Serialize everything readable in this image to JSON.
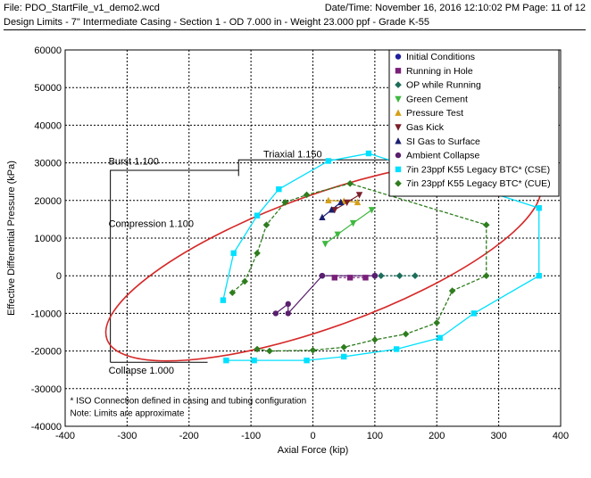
{
  "header": {
    "file_label": "File: PDO_StartFile_v1_demo2.wcd",
    "datetime_label": "Date/Time: November 16, 2016  12:10:02 PM  Page: 11 of 12"
  },
  "subtitle": "Design Limits - 7\" Intermediate Casing - Section 1 - OD 7.000 in - Weight 23.000 ppf - Grade K-55",
  "chart_data": {
    "type": "scatter",
    "xlabel": "Axial Force (kip)",
    "ylabel": "Effective Differential Pressure (kPa)",
    "xlim": [
      -400,
      400
    ],
    "ylim": [
      -40000,
      60000
    ],
    "xticks": [
      -400,
      -300,
      -200,
      -100,
      0,
      100,
      200,
      300,
      400
    ],
    "yticks": [
      -40000,
      -30000,
      -20000,
      -10000,
      0,
      10000,
      20000,
      30000,
      40000,
      50000,
      60000
    ],
    "grid": true,
    "legend_position": "top-right",
    "limit_labels": {
      "burst": "Burst 1.100",
      "triaxial": "Triaxial 1.150",
      "compression": "Compression 1.100",
      "collapse": "Collapse 1.000"
    },
    "notes": [
      "* ISO Connection defined in casing and tubing configuration",
      "Note: Limits are approximate"
    ],
    "series": [
      {
        "name": "Initial Conditions",
        "marker": "circle",
        "color": "#1f1f9e",
        "points": [
          [
            15,
            0
          ],
          [
            100,
            0
          ]
        ]
      },
      {
        "name": "Running in Hole",
        "marker": "square",
        "color": "#7a1f7a",
        "points": [
          [
            35,
            -500
          ],
          [
            60,
            -500
          ],
          [
            85,
            -500
          ]
        ]
      },
      {
        "name": "OP while Running",
        "marker": "diamond",
        "color": "#1c6e5a",
        "points": [
          [
            110,
            0
          ],
          [
            140,
            0
          ],
          [
            165,
            0
          ]
        ]
      },
      {
        "name": "Green Cement",
        "marker": "triangle-down",
        "color": "#3fb83f",
        "points": [
          [
            20,
            8500
          ],
          [
            40,
            11000
          ],
          [
            65,
            14000
          ],
          [
            95,
            17500
          ]
        ]
      },
      {
        "name": "Pressure Test",
        "marker": "triangle-up",
        "color": "#d4a017",
        "points": [
          [
            25,
            20000
          ],
          [
            50,
            19800
          ],
          [
            72,
            19500
          ]
        ]
      },
      {
        "name": "Gas Kick",
        "marker": "triangle-down",
        "color": "#7b1f2a",
        "points": [
          [
            35,
            17500
          ],
          [
            55,
            19500
          ],
          [
            75,
            21500
          ]
        ]
      },
      {
        "name": "SI Gas to Surface",
        "marker": "triangle-up",
        "color": "#1a1f6e",
        "points": [
          [
            15,
            15500
          ],
          [
            30,
            17500
          ],
          [
            45,
            19500
          ]
        ]
      },
      {
        "name": "Ambient Collapse",
        "marker": "circle",
        "color": "#5a1f6e",
        "points": [
          [
            -60,
            -10000
          ],
          [
            -40,
            -7500
          ],
          [
            -40,
            -10000
          ],
          [
            15,
            0
          ],
          [
            100,
            0
          ]
        ]
      },
      {
        "name": "7in 23ppf K55 Legacy BTC* (CSE)",
        "marker": "square",
        "color": "#00e0ff",
        "points": [
          [
            -145,
            -6500
          ],
          [
            -128,
            6000
          ],
          [
            -90,
            16000
          ],
          [
            -55,
            23000
          ],
          [
            25,
            30500
          ],
          [
            90,
            32500
          ],
          [
            365,
            18000
          ],
          [
            365,
            0
          ],
          [
            260,
            -10000
          ],
          [
            205,
            -16500
          ],
          [
            135,
            -19500
          ],
          [
            50,
            -21500
          ],
          [
            -10,
            -22500
          ],
          [
            -95,
            -22500
          ],
          [
            -140,
            -22500
          ]
        ]
      },
      {
        "name": "7in 23ppf K55 Legacy BTC* (CUE)",
        "marker": "diamond",
        "color": "#2e7d1e",
        "points": [
          [
            -130,
            -4500
          ],
          [
            -110,
            -1500
          ],
          [
            -90,
            6000
          ],
          [
            -75,
            13500
          ],
          [
            -45,
            19500
          ],
          [
            -10,
            21500
          ],
          [
            60,
            24500
          ],
          [
            280,
            13500
          ],
          [
            280,
            0
          ],
          [
            225,
            -4000
          ],
          [
            200,
            -12500
          ],
          [
            150,
            -15500
          ],
          [
            100,
            -17000
          ],
          [
            50,
            -19000
          ],
          [
            0,
            -19800
          ],
          [
            -70,
            -20000
          ],
          [
            -90,
            -19500
          ]
        ]
      }
    ]
  }
}
